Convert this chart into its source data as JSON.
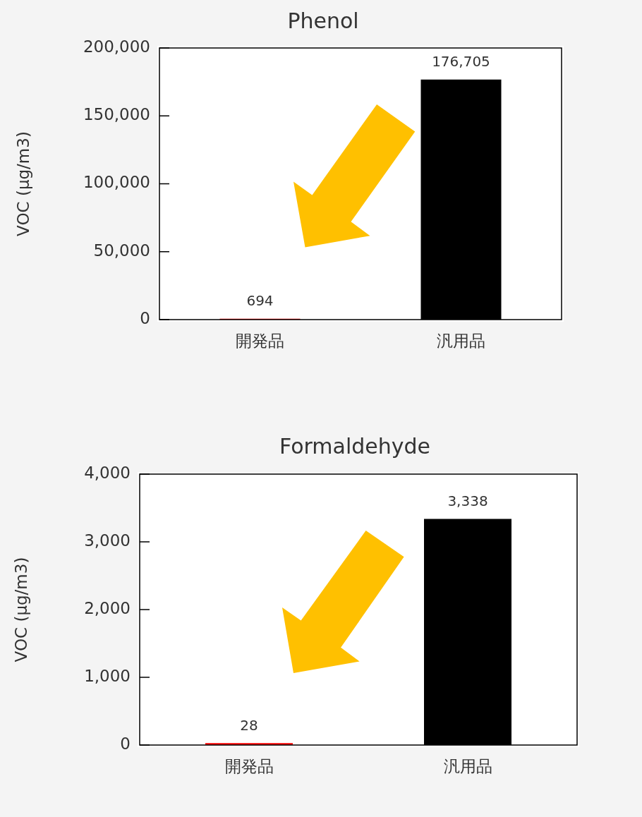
{
  "chart_data": [
    {
      "type": "bar",
      "title": "Phenol",
      "ylabel": "VOC (μg/m3)",
      "categories": [
        "開発品",
        "汎用品"
      ],
      "values": [
        694,
        176705
      ],
      "colors": [
        "#ff0000",
        "#000000"
      ],
      "value_labels": [
        "694",
        "176,705"
      ],
      "ylim": [
        0,
        200000
      ],
      "yticks": [
        0,
        {
          "value": 50000,
          "label": "50,000"
        },
        {
          "value": 100000,
          "label": "100,000"
        },
        {
          "value": 150000,
          "label": "150,000"
        },
        {
          "value": 200000,
          "label": "200,000"
        }
      ],
      "grid": false,
      "legend": false
    },
    {
      "type": "bar",
      "title": "Formaldehyde",
      "ylabel": "VOC (μg/m3)",
      "categories": [
        "開発品",
        "汎用品"
      ],
      "values": [
        28,
        3338
      ],
      "colors": [
        "#ff0000",
        "#000000"
      ],
      "value_labels": [
        "28",
        "3,338"
      ],
      "ylim": [
        0,
        4000
      ],
      "yticks": [
        0,
        {
          "value": 1000,
          "label": "1,000"
        },
        {
          "value": 2000,
          "label": "2,000"
        },
        {
          "value": 3000,
          "label": "3,000"
        },
        {
          "value": 4000,
          "label": "4,000"
        }
      ],
      "grid": false,
      "legend": false
    }
  ]
}
